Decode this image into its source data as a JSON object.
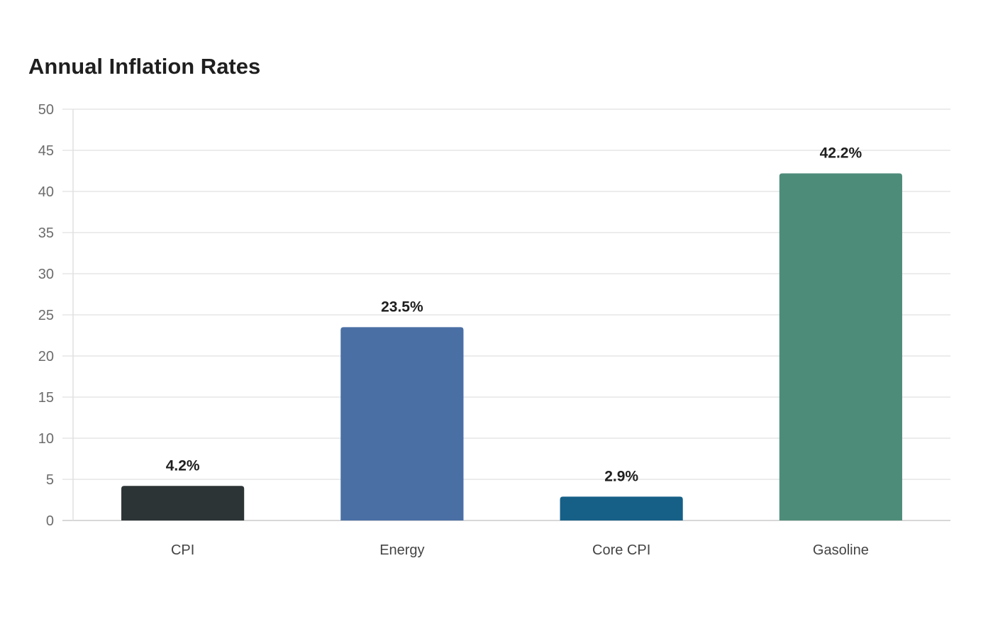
{
  "chart_data": {
    "type": "bar",
    "title": "Annual Inflation Rates",
    "xlabel": "",
    "ylabel": "",
    "ylim": [
      0,
      50
    ],
    "yticks": [
      0,
      5,
      10,
      15,
      20,
      25,
      30,
      35,
      40,
      45,
      50
    ],
    "categories": [
      "CPI",
      "Energy",
      "Core CPI",
      "Gasoline"
    ],
    "values": [
      4.2,
      23.5,
      2.9,
      42.2
    ],
    "value_labels": [
      "4.2%",
      "23.5%",
      "2.9%",
      "42.2%"
    ],
    "colors": [
      "#2d3436",
      "#4a6fa5",
      "#166088",
      "#4e8c7a"
    ],
    "grid": true,
    "legend": "none"
  }
}
